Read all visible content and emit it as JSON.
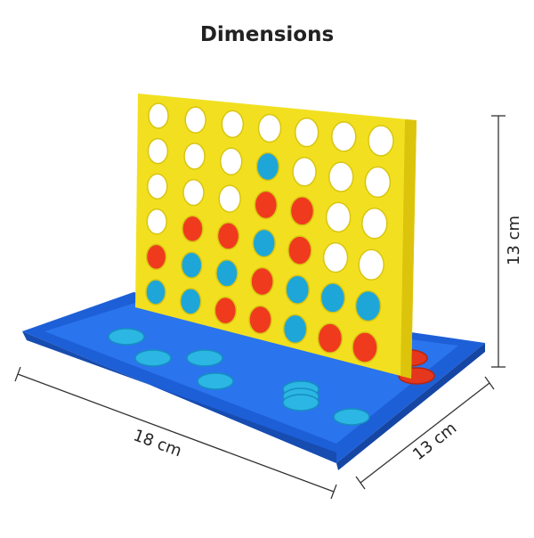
{
  "title": "Dimensions",
  "dimensions": {
    "height": "13 cm",
    "length": "18 cm",
    "width": "13 cm"
  }
}
